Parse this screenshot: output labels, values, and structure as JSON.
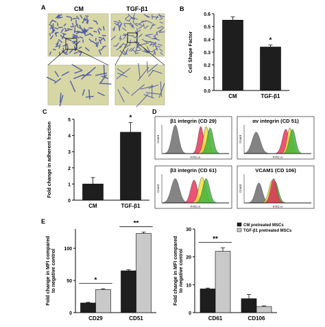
{
  "panel_letters": {
    "a": "A",
    "b": "B",
    "c": "C",
    "d": "D",
    "e": "E"
  },
  "panel_a": {
    "label_left": "CM",
    "label_right": "TGF-β1"
  },
  "colors": {
    "bar": "#1e1e1e",
    "bar_light": "#c9c9c9",
    "micro_bg": "#d7d7a6",
    "cell": "#4b55a8",
    "hist_gray": "#6e6e6e",
    "hist_red": "#e8365c",
    "hist_yellow": "#e9e23a",
    "hist_green": "#44b23c"
  },
  "flow_panels": [
    {
      "title": "β1 integrin (CD 29)",
      "xlabel": "FITC-A",
      "ylabel": "Count"
    },
    {
      "title": "αv integrin (CD 51)",
      "xlabel": "FITC-A",
      "ylabel": "Count"
    },
    {
      "title": "β3 integrin (CD 61)",
      "xlabel": "FITC-A",
      "ylabel": "Count"
    },
    {
      "title": "VCAM1 (CD 106)",
      "xlabel": "FITC-A",
      "ylabel": "Count"
    }
  ],
  "chart_data": [
    {
      "id": "B",
      "type": "bar",
      "categories": [
        "CM",
        "TGF-β1"
      ],
      "values": [
        0.55,
        0.34
      ],
      "errors": [
        0.025,
        0.015
      ],
      "significance": [
        "",
        "*"
      ],
      "ylabel": "Cell Shape Factor",
      "ylim": [
        0,
        0.6
      ],
      "yticks": [
        "0.0",
        "0.1",
        "0.2",
        "0.3",
        "0.4",
        "0.5",
        "0.6"
      ]
    },
    {
      "id": "C",
      "type": "bar",
      "categories": [
        "CM",
        "TGF-β1"
      ],
      "values": [
        1.0,
        4.2
      ],
      "errors": [
        0.4,
        0.6
      ],
      "significance": [
        "",
        "*"
      ],
      "ylabel": "Fold change in adherent fraction",
      "ylim": [
        0,
        5
      ],
      "yticks": [
        "0",
        "1",
        "2",
        "3",
        "4",
        "5"
      ]
    },
    {
      "id": "E-left",
      "type": "bar",
      "categories": [
        "CD29",
        "CD51"
      ],
      "series": [
        {
          "values": [
            15,
            65
          ],
          "errors": [
            1,
            1.5
          ]
        },
        {
          "values": [
            36,
            123
          ],
          "errors": [
            1,
            2
          ]
        }
      ],
      "significance": [
        "*",
        "**"
      ],
      "ylabel": "Fold change in MFI compared to negative control",
      "ylim": [
        0,
        130
      ],
      "yticks": [
        "0",
        "50",
        "100"
      ]
    },
    {
      "id": "E-right",
      "type": "bar",
      "categories": [
        "CD61",
        "CD106"
      ],
      "series": [
        {
          "name": "CM pretreated MSCs",
          "values": [
            8.5,
            5
          ],
          "errors": [
            0.3,
            1.5
          ]
        },
        {
          "name": "TGF-β1 pretreated MSCs",
          "values": [
            22,
            2.2
          ],
          "errors": [
            1.2,
            0.2
          ]
        }
      ],
      "significance": [
        "**",
        ""
      ],
      "ylabel": "Fold change in MFI compared to negative control",
      "ylim": [
        0,
        30
      ],
      "yticks": [
        "0",
        "10",
        "20",
        "30"
      ],
      "legend_position": "top-right"
    }
  ]
}
